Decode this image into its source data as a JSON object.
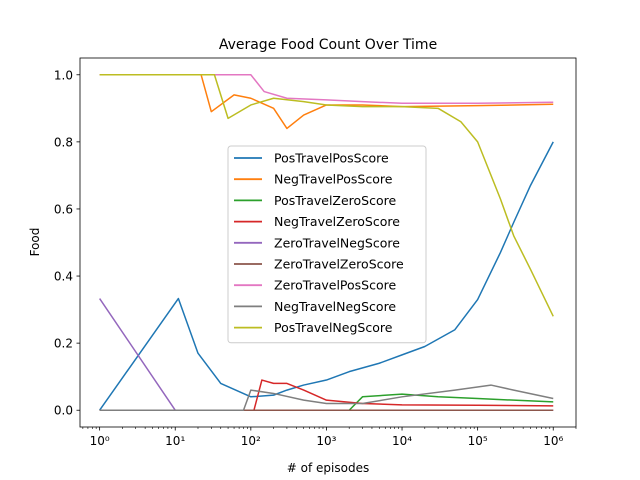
{
  "chart_data": {
    "type": "line",
    "title": "Average Food Count Over Time",
    "xlabel": "# of episodes",
    "ylabel": "Food",
    "xscale": "log",
    "xlim": [
      0.55,
      2000000
    ],
    "ylim": [
      -0.05,
      1.05
    ],
    "xticks": [
      {
        "value": 1,
        "label": "10⁰"
      },
      {
        "value": 10,
        "label": "10¹"
      },
      {
        "value": 100,
        "label": "10²"
      },
      {
        "value": 1000,
        "label": "10³"
      },
      {
        "value": 10000,
        "label": "10⁴"
      },
      {
        "value": 100000,
        "label": "10⁵"
      },
      {
        "value": 1000000,
        "label": "10⁶"
      }
    ],
    "yticks": [
      {
        "value": 0.0,
        "label": "0.0"
      },
      {
        "value": 0.2,
        "label": "0.2"
      },
      {
        "value": 0.4,
        "label": "0.4"
      },
      {
        "value": 0.6,
        "label": "0.6"
      },
      {
        "value": 0.8,
        "label": "0.8"
      },
      {
        "value": 1.0,
        "label": "1.0"
      }
    ],
    "grid": false,
    "legend_position": "center",
    "series": [
      {
        "name": "PosTravelPosScore",
        "color": "#1f77b4",
        "points": [
          [
            1,
            0
          ],
          [
            11,
            0.333
          ],
          [
            20,
            0.17
          ],
          [
            40,
            0.08
          ],
          [
            100,
            0.04
          ],
          [
            200,
            0.045
          ],
          [
            300,
            0.06
          ],
          [
            500,
            0.075
          ],
          [
            1000,
            0.09
          ],
          [
            2000,
            0.115
          ],
          [
            5000,
            0.14
          ],
          [
            10000,
            0.165
          ],
          [
            20000,
            0.19
          ],
          [
            50000,
            0.24
          ],
          [
            100000,
            0.33
          ],
          [
            200000,
            0.47
          ],
          [
            300000,
            0.56
          ],
          [
            500000,
            0.67
          ],
          [
            1000000,
            0.8
          ]
        ]
      },
      {
        "name": "NegTravelPosScore",
        "color": "#ff7f0e",
        "points": [
          [
            1,
            1
          ],
          [
            22,
            1
          ],
          [
            30,
            0.89
          ],
          [
            60,
            0.94
          ],
          [
            100,
            0.93
          ],
          [
            200,
            0.9
          ],
          [
            300,
            0.84
          ],
          [
            500,
            0.88
          ],
          [
            1000,
            0.91
          ],
          [
            3000,
            0.91
          ],
          [
            10000,
            0.905
          ],
          [
            100000,
            0.908
          ],
          [
            1000000,
            0.912
          ]
        ]
      },
      {
        "name": "PosTravelZeroScore",
        "color": "#2ca02c",
        "points": [
          [
            1,
            0
          ],
          [
            2000,
            0
          ],
          [
            3000,
            0.04
          ],
          [
            10000,
            0.048
          ],
          [
            30000,
            0.04
          ],
          [
            100000,
            0.035
          ],
          [
            300000,
            0.03
          ],
          [
            1000000,
            0.025
          ]
        ]
      },
      {
        "name": "NegTravelZeroScore",
        "color": "#d62728",
        "points": [
          [
            1,
            0
          ],
          [
            110,
            0
          ],
          [
            140,
            0.09
          ],
          [
            200,
            0.08
          ],
          [
            300,
            0.08
          ],
          [
            500,
            0.06
          ],
          [
            1000,
            0.03
          ],
          [
            3000,
            0.02
          ],
          [
            10000,
            0.016
          ],
          [
            100000,
            0.015
          ],
          [
            1000000,
            0.013
          ]
        ]
      },
      {
        "name": "ZeroTravelNegScore",
        "color": "#9467bd",
        "points": [
          [
            1,
            0.333
          ],
          [
            10,
            0
          ],
          [
            1000000,
            0
          ]
        ]
      },
      {
        "name": "ZeroTravelZeroScore",
        "color": "#8c564b",
        "points": [
          [
            1,
            0
          ],
          [
            1000000,
            0
          ]
        ]
      },
      {
        "name": "ZeroTravelPosScore",
        "color": "#e377c2",
        "points": [
          [
            1,
            1
          ],
          [
            100,
            1
          ],
          [
            150,
            0.95
          ],
          [
            300,
            0.93
          ],
          [
            1000,
            0.925
          ],
          [
            3000,
            0.92
          ],
          [
            10000,
            0.915
          ],
          [
            100000,
            0.915
          ],
          [
            1000000,
            0.918
          ]
        ]
      },
      {
        "name": "NegTravelNegScore",
        "color": "#7f7f7f",
        "points": [
          [
            1,
            0
          ],
          [
            80,
            0
          ],
          [
            100,
            0.06
          ],
          [
            200,
            0.05
          ],
          [
            500,
            0.03
          ],
          [
            1000,
            0.02
          ],
          [
            3000,
            0.02
          ],
          [
            10000,
            0.04
          ],
          [
            50000,
            0.06
          ],
          [
            150000,
            0.075
          ],
          [
            300000,
            0.06
          ],
          [
            1000000,
            0.035
          ]
        ]
      },
      {
        "name": "PosTravelNegScore",
        "color": "#bcbd22",
        "points": [
          [
            1,
            1
          ],
          [
            33,
            1
          ],
          [
            50,
            0.87
          ],
          [
            100,
            0.91
          ],
          [
            200,
            0.93
          ],
          [
            500,
            0.92
          ],
          [
            1000,
            0.91
          ],
          [
            3000,
            0.905
          ],
          [
            10000,
            0.905
          ],
          [
            30000,
            0.9
          ],
          [
            60000,
            0.86
          ],
          [
            100000,
            0.8
          ],
          [
            200000,
            0.63
          ],
          [
            300000,
            0.52
          ],
          [
            500000,
            0.42
          ],
          [
            1000000,
            0.28
          ]
        ]
      }
    ]
  }
}
